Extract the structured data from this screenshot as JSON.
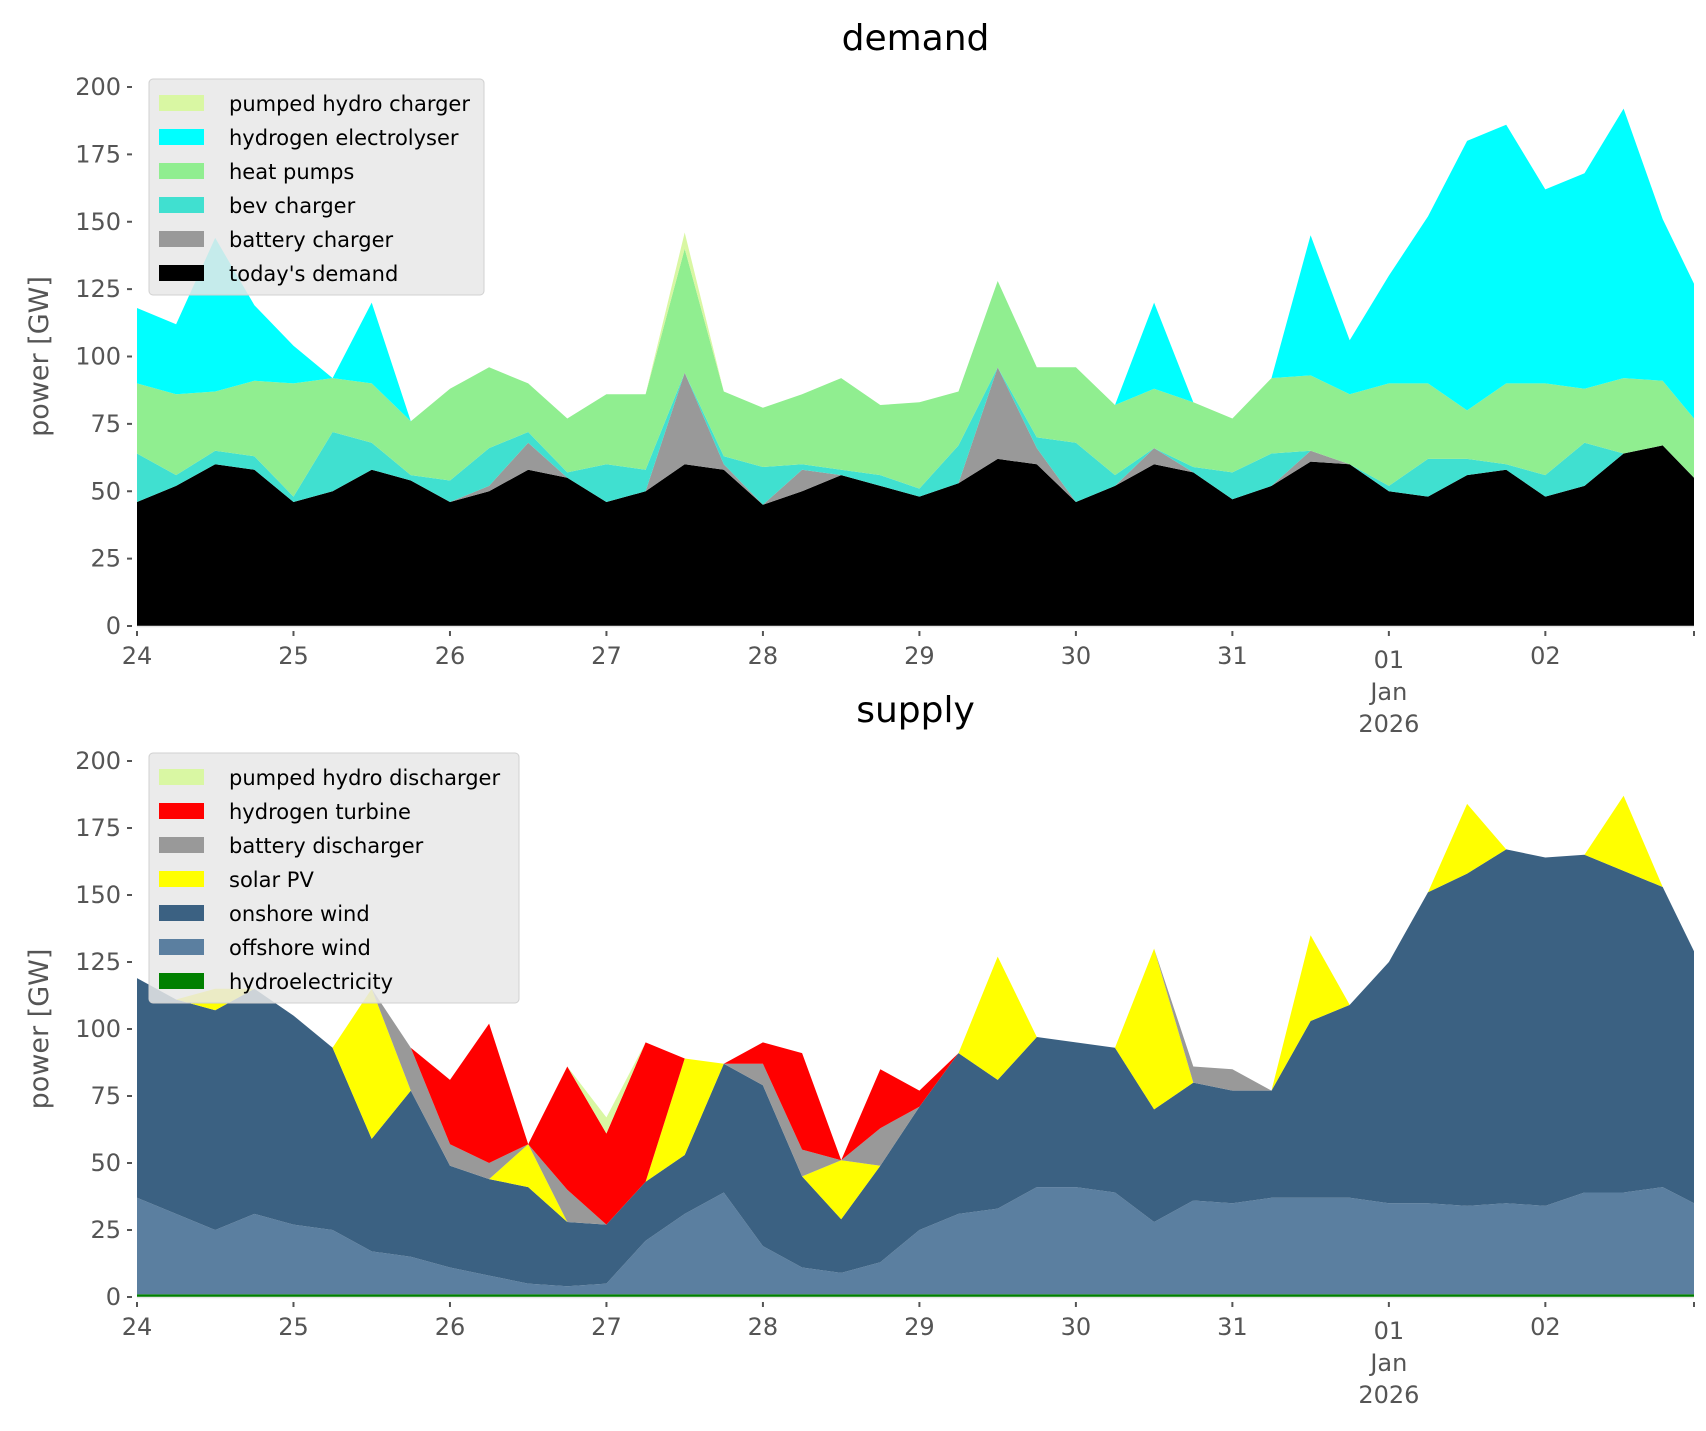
{
  "chart_data": [
    {
      "type": "area",
      "stacked": true,
      "title": "demand",
      "xlabel": "",
      "ylabel": "power [GW]",
      "ylim": [
        0,
        200
      ],
      "yticks": [
        0,
        25,
        50,
        75,
        100,
        125,
        150,
        175,
        200
      ],
      "xlim_days": [
        0,
        9.95
      ],
      "xticks": [
        {
          "day": 0,
          "label": "24"
        },
        {
          "day": 1,
          "label": "25"
        },
        {
          "day": 2,
          "label": "26"
        },
        {
          "day": 3,
          "label": "27"
        },
        {
          "day": 4,
          "label": "28"
        },
        {
          "day": 5,
          "label": "29"
        },
        {
          "day": 6,
          "label": "30"
        },
        {
          "day": 7,
          "label": "31"
        },
        {
          "day": 8,
          "label": "01",
          "sublabel": [
            "Jan",
            "2026"
          ]
        },
        {
          "day": 9,
          "label": "02"
        }
      ],
      "x_unit": "days since 24 Dec 2025 (6-hourly)",
      "x": [
        0,
        0.25,
        0.5,
        0.75,
        1,
        1.25,
        1.5,
        1.75,
        2,
        2.25,
        2.5,
        2.75,
        3,
        3.25,
        3.5,
        3.75,
        4,
        4.25,
        4.5,
        4.75,
        5,
        5.25,
        5.5,
        5.75,
        6,
        6.25,
        6.5,
        6.75,
        7,
        7.25,
        7.5,
        7.75,
        8,
        8.25,
        8.5,
        8.75,
        9,
        9.25,
        9.5,
        9.75,
        9.95
      ],
      "grid": false,
      "legend": "top-left",
      "series": [
        {
          "name": "today's demand",
          "color": "#000000",
          "values": [
            46,
            52,
            60,
            58,
            46,
            50,
            58,
            54,
            46,
            50,
            58,
            55,
            46,
            50,
            60,
            58,
            45,
            50,
            56,
            52,
            48,
            53,
            62,
            60,
            46,
            52,
            60,
            57,
            47,
            52,
            61,
            60,
            50,
            48,
            56,
            58,
            48,
            52,
            64,
            67,
            55
          ]
        },
        {
          "name": "battery charger",
          "color": "#999999",
          "values": [
            0,
            0,
            0,
            0,
            0,
            0,
            0,
            0,
            0,
            2,
            10,
            0,
            0,
            0,
            34,
            2,
            0,
            8,
            0,
            0,
            0,
            0,
            34,
            6,
            0,
            0,
            6,
            0,
            0,
            0,
            4,
            0,
            0,
            0,
            0,
            0,
            0,
            0,
            0,
            0,
            0
          ]
        },
        {
          "name": "bev charger",
          "color": "#40e0d0",
          "values": [
            18,
            4,
            5,
            5,
            2,
            22,
            10,
            2,
            8,
            14,
            4,
            2,
            14,
            8,
            0,
            3,
            14,
            2,
            2,
            4,
            3,
            14,
            0,
            4,
            22,
            4,
            0,
            2,
            10,
            12,
            0,
            0,
            2,
            14,
            6,
            2,
            8,
            16,
            0,
            0,
            0
          ]
        },
        {
          "name": "heat pumps",
          "color": "#90ee90",
          "values": [
            26,
            30,
            22,
            28,
            42,
            20,
            22,
            20,
            34,
            30,
            18,
            20,
            26,
            28,
            46,
            24,
            22,
            26,
            34,
            26,
            32,
            20,
            32,
            26,
            28,
            26,
            22,
            24,
            20,
            28,
            28,
            26,
            38,
            28,
            18,
            30,
            34,
            20,
            28,
            24,
            22
          ]
        },
        {
          "name": "hydrogen electrolyser",
          "color": "#00ffff",
          "values": [
            28,
            26,
            57,
            28,
            14,
            0,
            30,
            0,
            0,
            0,
            0,
            0,
            0,
            0,
            0,
            0,
            0,
            0,
            0,
            0,
            0,
            0,
            0,
            0,
            0,
            0,
            32,
            0,
            0,
            0,
            52,
            20,
            40,
            62,
            100,
            96,
            72,
            80,
            100,
            60,
            50
          ]
        },
        {
          "name": "pumped hydro charger",
          "color": "#d9f7a3",
          "values": [
            0,
            0,
            0,
            0,
            0,
            0,
            0,
            0,
            0,
            0,
            0,
            0,
            0,
            0,
            6,
            0,
            0,
            0,
            0,
            0,
            0,
            0,
            0,
            0,
            0,
            0,
            0,
            0,
            0,
            0,
            0,
            0,
            0,
            0,
            0,
            0,
            0,
            0,
            0,
            0,
            0
          ]
        }
      ]
    },
    {
      "type": "area",
      "stacked": true,
      "title": "supply",
      "xlabel": "",
      "ylabel": "power [GW]",
      "ylim": [
        0,
        200
      ],
      "yticks": [
        0,
        25,
        50,
        75,
        100,
        125,
        150,
        175,
        200
      ],
      "xlim_days": [
        0,
        9.95
      ],
      "xticks": [
        {
          "day": 0,
          "label": "24"
        },
        {
          "day": 1,
          "label": "25"
        },
        {
          "day": 2,
          "label": "26"
        },
        {
          "day": 3,
          "label": "27"
        },
        {
          "day": 4,
          "label": "28"
        },
        {
          "day": 5,
          "label": "29"
        },
        {
          "day": 6,
          "label": "30"
        },
        {
          "day": 7,
          "label": "31"
        },
        {
          "day": 8,
          "label": "01",
          "sublabel": [
            "Jan",
            "2026"
          ]
        },
        {
          "day": 9,
          "label": "02"
        }
      ],
      "x_unit": "days since 24 Dec 2025 (6-hourly)",
      "x": [
        0,
        0.25,
        0.5,
        0.75,
        1,
        1.25,
        1.5,
        1.75,
        2,
        2.25,
        2.5,
        2.75,
        3,
        3.25,
        3.5,
        3.75,
        4,
        4.25,
        4.5,
        4.75,
        5,
        5.25,
        5.5,
        5.75,
        6,
        6.25,
        6.5,
        6.75,
        7,
        7.25,
        7.5,
        7.75,
        8,
        8.25,
        8.5,
        8.75,
        9,
        9.25,
        9.5,
        9.75,
        9.95
      ],
      "grid": false,
      "legend": "top-left",
      "series": [
        {
          "name": "hydroelectricity",
          "color": "#008000",
          "values": [
            1,
            1,
            1,
            1,
            1,
            1,
            1,
            1,
            1,
            1,
            1,
            1,
            1,
            1,
            1,
            1,
            1,
            1,
            1,
            1,
            1,
            1,
            1,
            1,
            1,
            1,
            1,
            1,
            1,
            1,
            1,
            1,
            1,
            1,
            1,
            1,
            1,
            1,
            1,
            1,
            1
          ]
        },
        {
          "name": "offshore wind",
          "color": "#5b7fa0",
          "values": [
            36,
            30,
            24,
            30,
            26,
            24,
            16,
            14,
            10,
            7,
            4,
            3,
            4,
            20,
            30,
            38,
            18,
            10,
            8,
            12,
            24,
            30,
            32,
            40,
            40,
            38,
            27,
            35,
            34,
            36,
            36,
            36,
            34,
            34,
            33,
            34,
            33,
            38,
            38,
            40,
            34
          ]
        },
        {
          "name": "onshore wind",
          "color": "#3b6182",
          "values": [
            82,
            80,
            82,
            84,
            78,
            68,
            42,
            62,
            38,
            36,
            36,
            24,
            22,
            22,
            22,
            48,
            60,
            34,
            20,
            36,
            46,
            60,
            48,
            56,
            54,
            54,
            42,
            44,
            42,
            40,
            66,
            72,
            90,
            116,
            124,
            132,
            130,
            126,
            120,
            112,
            94
          ]
        },
        {
          "name": "solar PV",
          "color": "#ffff00",
          "values": [
            0,
            0,
            8,
            0,
            0,
            0,
            56,
            0,
            0,
            0,
            16,
            0,
            0,
            0,
            36,
            0,
            0,
            0,
            22,
            0,
            0,
            0,
            46,
            0,
            0,
            0,
            60,
            0,
            0,
            0,
            32,
            0,
            0,
            0,
            26,
            0,
            0,
            0,
            28,
            0,
            0
          ]
        },
        {
          "name": "battery discharger",
          "color": "#999999",
          "values": [
            0,
            0,
            0,
            0,
            0,
            0,
            0,
            16,
            8,
            6,
            0,
            12,
            0,
            0,
            0,
            0,
            8,
            10,
            0,
            14,
            0,
            0,
            0,
            0,
            0,
            0,
            0,
            6,
            8,
            0,
            0,
            0,
            0,
            0,
            0,
            0,
            0,
            0,
            0,
            0,
            0
          ]
        },
        {
          "name": "hydrogen turbine",
          "color": "#ff0000",
          "values": [
            0,
            0,
            0,
            0,
            0,
            0,
            0,
            0,
            24,
            52,
            0,
            46,
            34,
            52,
            0,
            0,
            8,
            36,
            0,
            22,
            6,
            0,
            0,
            0,
            0,
            0,
            0,
            0,
            0,
            0,
            0,
            0,
            0,
            0,
            0,
            0,
            0,
            0,
            0,
            0,
            0
          ]
        },
        {
          "name": "pumped hydro discharger",
          "color": "#d9f7a3",
          "values": [
            0,
            0,
            0,
            0,
            0,
            0,
            0,
            0,
            0,
            0,
            0,
            0,
            6,
            0,
            0,
            0,
            0,
            0,
            0,
            0,
            0,
            0,
            0,
            0,
            0,
            0,
            0,
            0,
            0,
            0,
            0,
            0,
            0,
            0,
            0,
            0,
            0,
            0,
            0,
            0,
            0
          ]
        }
      ]
    }
  ]
}
